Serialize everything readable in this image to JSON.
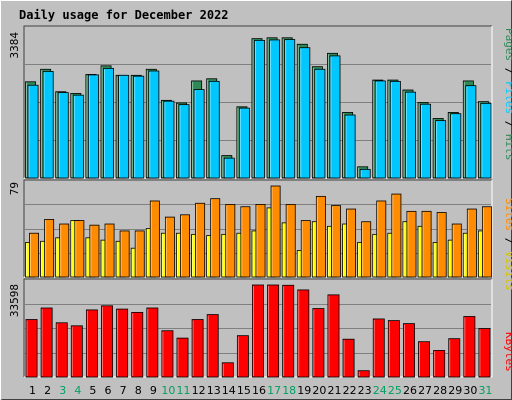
{
  "title": "Daily usage for December 2022",
  "colors": {
    "background": "#c0c0c0",
    "title": "#0000ff",
    "pages": "#2e8b57",
    "files": "#00c8ff",
    "hits": "#00ffff",
    "sites": "#ff8c00",
    "visits": "#ffff00",
    "kbytes": "#ff0000",
    "weekday_label": "#000000",
    "weekend_label": "#00a060"
  },
  "y_axis_tops": {
    "hits": "3384",
    "visits": "79",
    "kbytes": "33598"
  },
  "legend": {
    "pages": "Pages",
    "files": "Files",
    "hits": "Hits",
    "sites": "Sites",
    "visits": "Visits",
    "kbytes": "KBytes",
    "separator": " / "
  },
  "chart_data": [
    {
      "type": "bar",
      "title": "Daily usage for December 2022",
      "categories": [
        "1",
        "2",
        "3",
        "4",
        "5",
        "6",
        "7",
        "8",
        "9",
        "10",
        "11",
        "12",
        "13",
        "14",
        "15",
        "16",
        "17",
        "18",
        "19",
        "20",
        "21",
        "22",
        "23",
        "24",
        "25",
        "26",
        "27",
        "28",
        "29",
        "30",
        "31"
      ],
      "weekend_days": [
        "3",
        "4",
        "10",
        "11",
        "17",
        "18",
        "24",
        "25",
        "31"
      ],
      "ylim": [
        0,
        3384
      ],
      "series": [
        {
          "name": "Pages",
          "values": [
            2230,
            2520,
            2000,
            1960,
            2400,
            2600,
            2380,
            2380,
            2520,
            1800,
            1740,
            2250,
            2300,
            520,
            1650,
            3230,
            3250,
            3250,
            3100,
            2580,
            2890,
            1520,
            260,
            2270,
            2270,
            2040,
            1750,
            1380,
            1520,
            2250,
            1770
          ]
        },
        {
          "name": "Files",
          "values": [
            2150,
            2470,
            1980,
            1920,
            2390,
            2540,
            2380,
            2360,
            2480,
            1780,
            1700,
            2050,
            2240,
            460,
            1620,
            3190,
            3200,
            3210,
            3020,
            2520,
            2830,
            1460,
            200,
            2250,
            2240,
            1990,
            1710,
            1330,
            1490,
            2140,
            1730
          ]
        },
        {
          "name": "Hits",
          "values": [
            2230,
            2520,
            2000,
            1960,
            2400,
            2600,
            2380,
            2380,
            2520,
            1800,
            1740,
            2250,
            2300,
            520,
            1650,
            3230,
            3250,
            3250,
            3100,
            2580,
            2890,
            1520,
            260,
            2270,
            2270,
            2040,
            1750,
            1380,
            1520,
            2250,
            1770
          ]
        }
      ]
    },
    {
      "type": "bar",
      "categories": [
        "1",
        "2",
        "3",
        "4",
        "5",
        "6",
        "7",
        "8",
        "9",
        "10",
        "11",
        "12",
        "13",
        "14",
        "15",
        "16",
        "17",
        "18",
        "19",
        "20",
        "21",
        "22",
        "23",
        "24",
        "25",
        "26",
        "27",
        "28",
        "29",
        "30",
        "31"
      ],
      "ylim": [
        0,
        79
      ],
      "series": [
        {
          "name": "Visits",
          "values": [
            30,
            31,
            34,
            49,
            34,
            32,
            31,
            25,
            42,
            38,
            38,
            37,
            36,
            37,
            38,
            40,
            60,
            47,
            23,
            48,
            44,
            46,
            30,
            37,
            38,
            48,
            44,
            30,
            32,
            38,
            40
          ]
        },
        {
          "name": "Sites",
          "values": [
            38,
            50,
            46,
            49,
            45,
            46,
            40,
            40,
            66,
            52,
            54,
            64,
            68,
            63,
            61,
            63,
            79,
            63,
            49,
            70,
            62,
            59,
            48,
            66,
            72,
            57,
            57,
            56,
            46,
            59,
            61
          ]
        }
      ]
    },
    {
      "type": "bar",
      "categories": [
        "1",
        "2",
        "3",
        "4",
        "5",
        "6",
        "7",
        "8",
        "9",
        "10",
        "11",
        "12",
        "13",
        "14",
        "15",
        "16",
        "17",
        "18",
        "19",
        "20",
        "21",
        "22",
        "23",
        "24",
        "25",
        "26",
        "27",
        "28",
        "29",
        "30",
        "31"
      ],
      "ylim": [
        0,
        33598
      ],
      "series": [
        {
          "name": "KBytes",
          "values": [
            21000,
            25200,
            19800,
            18700,
            24500,
            26000,
            24800,
            23600,
            25200,
            16900,
            14200,
            21000,
            22800,
            5200,
            15100,
            33600,
            33598,
            33500,
            31800,
            25000,
            30000,
            13800,
            2300,
            21200,
            20600,
            19500,
            12900,
            9700,
            14000,
            22100,
            17700
          ]
        }
      ]
    }
  ]
}
